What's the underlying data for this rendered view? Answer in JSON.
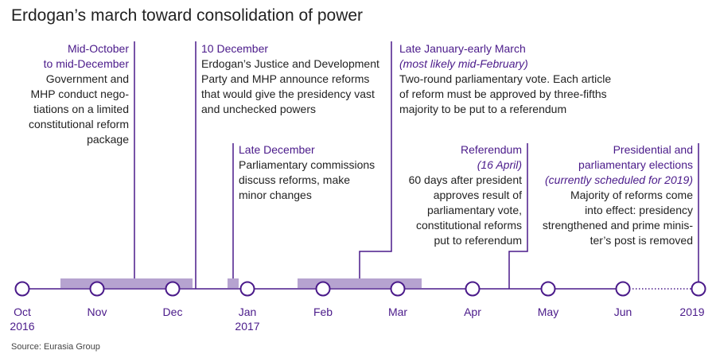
{
  "title": "Erdogan’s march toward consolidation of power",
  "colors": {
    "accent": "#4a1a8a",
    "band": "#b6a3d0",
    "text": "#222222"
  },
  "events": [
    {
      "heading": [
        "Mid-October",
        "to mid-December"
      ],
      "subheading": [],
      "body": [
        "Government and",
        "MHP conduct nego-",
        "tiations on a limited",
        "constitutional reform",
        "package"
      ]
    },
    {
      "heading": [
        "10 December"
      ],
      "subheading": [],
      "body": [
        "Erdogan’s Justice and Development",
        "Party and MHP announce reforms",
        "that would give the presidency vast",
        "and unchecked powers"
      ]
    },
    {
      "heading": [
        "Late December"
      ],
      "subheading": [],
      "body": [
        "Parliamentary commissions",
        "discuss reforms, make",
        "minor changes"
      ]
    },
    {
      "heading": [
        "Late January-early March"
      ],
      "subheading": [
        "(most likely mid-February)"
      ],
      "body": [
        "Two-round parliamentary vote. Each article",
        "of reform must be approved by three-fifths",
        "majority to be put to a referendum"
      ]
    },
    {
      "heading": [
        "Referendum"
      ],
      "subheading": [
        "(16 April)"
      ],
      "body": [
        "60 days after president",
        "approves result of",
        "parliamentary vote,",
        "constitutional reforms",
        "put to referendum"
      ]
    },
    {
      "heading": [
        "Presidential and",
        "parliamentary elections"
      ],
      "subheading": [
        "(currently scheduled for 2019)"
      ],
      "body": [
        "Majority of reforms come",
        "into effect: presidency",
        "strengthened and prime minis-",
        "ter’s post is removed"
      ]
    }
  ],
  "months": [
    {
      "label": "Oct",
      "year": "2016"
    },
    {
      "label": "Nov",
      "year": ""
    },
    {
      "label": "Dec",
      "year": ""
    },
    {
      "label": "Jan",
      "year": "2017"
    },
    {
      "label": "Feb",
      "year": ""
    },
    {
      "label": "Mar",
      "year": ""
    },
    {
      "label": "Apr",
      "year": ""
    },
    {
      "label": "May",
      "year": ""
    },
    {
      "label": "Jun",
      "year": ""
    },
    {
      "label": "2019",
      "year": ""
    }
  ],
  "source": "Source: Eurasia Group"
}
